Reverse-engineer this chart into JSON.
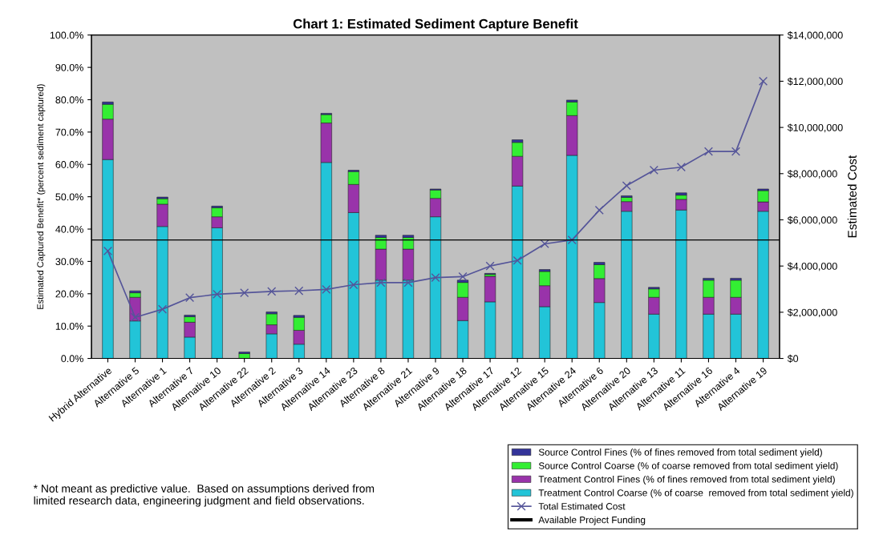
{
  "chart_data": {
    "type": "bar",
    "stacked": true,
    "title": "Chart 1: Estimated Sediment Capture Benefit",
    "ylabel": "Estimated Captured Benefit* (percent sediment captured)",
    "y2label": "Estimated Cost",
    "categories": [
      "Hybrid Alternative",
      "Alternative 5",
      "Alternative 1",
      "Alternative 7",
      "Alternative 10",
      "Alternative 22",
      "Alternative 2",
      "Alternative 3",
      "Alternative 14",
      "Alternative 23",
      "Alternative 8",
      "Alternative 21",
      "Alternative 9",
      "Alternative 18",
      "Alternative 17",
      "Alternative 12",
      "Alternative 15",
      "Alternative 24",
      "Alternative 6",
      "Alternative 20",
      "Alternative 13",
      "Alternative 11",
      "Alternative 16",
      "Alternative 4",
      "Alternative 19"
    ],
    "series": [
      {
        "name": "Treatment Control Coarse (% of coarse  removed from total sediment yield)",
        "color": "#22c4d8",
        "values": [
          61.5,
          11.6,
          40.8,
          6.6,
          40.4,
          0,
          7.6,
          4.4,
          60.6,
          45.1,
          24.2,
          24.2,
          43.8,
          11.7,
          17.5,
          53.3,
          16.0,
          62.8,
          17.3,
          45.5,
          13.7,
          45.9,
          13.7,
          13.7,
          45.5
        ]
      },
      {
        "name": "Treatment Control Fines (% of fines removed from total sediment yield)",
        "color": "#9933aa",
        "values": [
          12.5,
          7.3,
          6.9,
          4.6,
          3.4,
          0,
          2.8,
          4.3,
          12.2,
          8.7,
          9.6,
          9.6,
          5.7,
          7.2,
          7.9,
          9.2,
          6.5,
          12.3,
          7.4,
          3.0,
          5.2,
          3.3,
          5.2,
          5.2,
          2.9
        ]
      },
      {
        "name": "Source Control Coarse (% of coarse removed from total sediment yield)",
        "color": "#33ee33",
        "values": [
          4.6,
          1.4,
          1.7,
          1.7,
          2.8,
          1.5,
          3.4,
          4.0,
          2.6,
          4.0,
          3.6,
          3.6,
          2.6,
          4.6,
          0.6,
          4.3,
          4.4,
          4.2,
          4.3,
          1.3,
          2.6,
          1.3,
          5.3,
          5.3,
          3.5
        ]
      },
      {
        "name": "Source Control Fines (% of fines removed from total sediment yield)",
        "color": "#333399",
        "values": [
          0.7,
          0.6,
          0.5,
          0.5,
          0.5,
          0.5,
          0.6,
          0.6,
          0.4,
          0.4,
          0.7,
          0.7,
          0.3,
          0.7,
          0.3,
          0.8,
          0.6,
          0.6,
          0.7,
          0.5,
          0.5,
          0.7,
          0.6,
          0.6,
          0.5
        ]
      },
      {
        "name": "Total Estimated Cost",
        "type": "line",
        "axis": "y2",
        "color": "#555599",
        "marker": "cross",
        "values": [
          4650000,
          1780000,
          2130000,
          2630000,
          2780000,
          2840000,
          2900000,
          2930000,
          2990000,
          3190000,
          3280000,
          3280000,
          3500000,
          3540000,
          4000000,
          4240000,
          4960000,
          5130000,
          6420000,
          7480000,
          8150000,
          8280000,
          8960000,
          8960000,
          12000000
        ]
      }
    ],
    "ylim": [
      0,
      100
    ],
    "yticks": [
      {
        "value": 0,
        "label": "0.0%"
      },
      {
        "value": 10,
        "label": "10.0%"
      },
      {
        "value": 20,
        "label": "20.0%"
      },
      {
        "value": 30,
        "label": "30.0%"
      },
      {
        "value": 40,
        "label": "40.0%"
      },
      {
        "value": 50,
        "label": "50.0%"
      },
      {
        "value": 60,
        "label": "60.0%"
      },
      {
        "value": 70,
        "label": "70.0%"
      },
      {
        "value": 80,
        "label": "80.0%"
      },
      {
        "value": 90,
        "label": "90.0%"
      },
      {
        "value": 100,
        "label": "100.0%"
      }
    ],
    "y2lim": [
      0,
      14000000
    ],
    "y2ticks": [
      {
        "value": 0,
        "label": "$0"
      },
      {
        "value": 2000000,
        "label": "$2,000,000"
      },
      {
        "value": 4000000,
        "label": "$4,000,000"
      },
      {
        "value": 6000000,
        "label": "$6,000,000"
      },
      {
        "value": 8000000,
        "label": "$8,000,000"
      },
      {
        "value": 10000000,
        "label": "$10,000,000"
      },
      {
        "value": 12000000,
        "label": "$12,000,000"
      },
      {
        "value": 14000000,
        "label": "$14,000,000"
      }
    ],
    "ref_lines": [
      {
        "axis": "y2",
        "value": 5130000,
        "label": "Available Project Funding",
        "color": "#000000"
      }
    ],
    "annotations": [
      "* Not meant as predictive value.  Based on assumptions derived from limited research data, engineering judgment and field observations."
    ],
    "legend": "bottom right",
    "grid": false
  }
}
